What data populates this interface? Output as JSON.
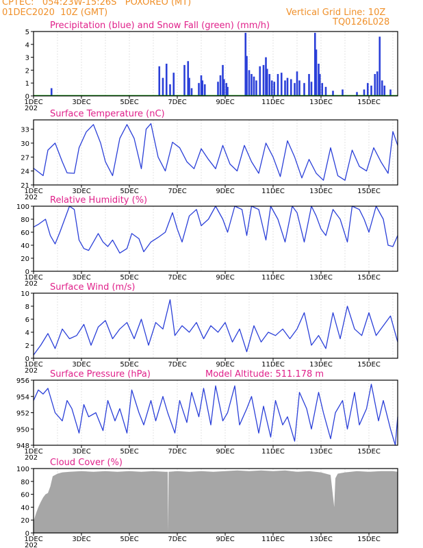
{
  "header": {
    "line1_left": "CPTEC:   054:23W-15:26S   POXOREO (MT)",
    "line2_left": "01DEC2020  10Z (GMT)",
    "line2_right": "Vertical Grid Line: 10Z",
    "line3_right": "TQ0126L028"
  },
  "x_axis": {
    "labels": [
      "1DEC",
      "3DEC",
      "5DEC",
      "7DEC",
      "9DEC",
      "11DEC",
      "13DEC",
      "15DEC"
    ],
    "label_days": [
      1,
      3,
      5,
      7,
      9,
      11,
      13,
      15
    ],
    "stub_label": "202",
    "day_range": [
      1,
      16.2
    ]
  },
  "colors": {
    "series": "#2a3fd8",
    "title": "#e0208a",
    "header": "#f0902a",
    "cloud": "#a6a6a6",
    "snow": "#00a000"
  },
  "chart_data": [
    {
      "type": "bar",
      "title": "Precipitation (blue) and Snow Fall (green) (mm/h)",
      "ylim": [
        0,
        5
      ],
      "yticks": [
        0,
        1,
        2,
        3,
        4,
        5
      ],
      "series": [
        {
          "name": "Precipitation",
          "values": [
            [
              1.75,
              0.6
            ],
            [
              6.25,
              2.3
            ],
            [
              6.4,
              1.4
            ],
            [
              6.55,
              2.5
            ],
            [
              6.7,
              0.9
            ],
            [
              6.85,
              1.8
            ],
            [
              7.3,
              2.4
            ],
            [
              7.45,
              2.7
            ],
            [
              7.5,
              1.4
            ],
            [
              7.6,
              0.6
            ],
            [
              7.9,
              1.0
            ],
            [
              8.0,
              1.6
            ],
            [
              8.05,
              1.2
            ],
            [
              8.15,
              0.9
            ],
            [
              8.7,
              1.1
            ],
            [
              8.8,
              1.6
            ],
            [
              8.9,
              2.4
            ],
            [
              8.95,
              1.3
            ],
            [
              9.05,
              1.0
            ],
            [
              9.1,
              0.7
            ],
            [
              9.85,
              4.9
            ],
            [
              9.9,
              3.1
            ],
            [
              10.0,
              2.0
            ],
            [
              10.1,
              1.7
            ],
            [
              10.2,
              1.5
            ],
            [
              10.3,
              1.2
            ],
            [
              10.45,
              2.3
            ],
            [
              10.6,
              2.4
            ],
            [
              10.7,
              3.0
            ],
            [
              10.75,
              2.1
            ],
            [
              10.85,
              1.7
            ],
            [
              10.95,
              1.2
            ],
            [
              11.05,
              1.1
            ],
            [
              11.2,
              1.7
            ],
            [
              11.35,
              1.8
            ],
            [
              11.5,
              1.2
            ],
            [
              11.6,
              1.4
            ],
            [
              11.75,
              1.3
            ],
            [
              11.9,
              1.0
            ],
            [
              12.0,
              1.9
            ],
            [
              12.1,
              1.2
            ],
            [
              12.3,
              1.0
            ],
            [
              12.5,
              1.7
            ],
            [
              12.6,
              1.1
            ],
            [
              12.75,
              4.9
            ],
            [
              12.8,
              3.6
            ],
            [
              12.9,
              2.5
            ],
            [
              12.95,
              1.7
            ],
            [
              13.05,
              1.0
            ],
            [
              13.2,
              0.7
            ],
            [
              13.5,
              0.4
            ],
            [
              13.9,
              0.5
            ],
            [
              14.5,
              0.3
            ],
            [
              14.8,
              0.5
            ],
            [
              14.95,
              1.0
            ],
            [
              15.1,
              0.8
            ],
            [
              15.25,
              1.7
            ],
            [
              15.35,
              1.9
            ],
            [
              15.45,
              4.6
            ],
            [
              15.55,
              1.2
            ],
            [
              15.65,
              0.8
            ],
            [
              15.9,
              0.5
            ]
          ]
        },
        {
          "name": "Snow Fall",
          "values": [
            [
              1,
              0
            ],
            [
              16.2,
              0
            ]
          ]
        }
      ]
    },
    {
      "type": "line",
      "title": "Surface Temperature (nC)",
      "ylim": [
        21,
        35
      ],
      "yticks": [
        21,
        24,
        27,
        30,
        33
      ],
      "x": [
        1.0,
        1.2,
        1.4,
        1.6,
        1.9,
        2.2,
        2.4,
        2.7,
        2.9,
        3.2,
        3.5,
        3.8,
        4.0,
        4.3,
        4.6,
        4.9,
        5.2,
        5.5,
        5.7,
        5.9,
        6.2,
        6.5,
        6.8,
        7.1,
        7.4,
        7.7,
        8.0,
        8.3,
        8.6,
        8.9,
        9.2,
        9.5,
        9.8,
        10.1,
        10.4,
        10.7,
        11.0,
        11.3,
        11.6,
        11.9,
        12.2,
        12.5,
        12.8,
        13.1,
        13.4,
        13.7,
        14.0,
        14.3,
        14.6,
        14.9,
        15.2,
        15.5,
        15.8,
        16.0,
        16.2
      ],
      "values": [
        24.6,
        23.8,
        23.0,
        28.5,
        30.0,
        26.0,
        23.6,
        23.5,
        29.0,
        32.4,
        34.0,
        30.0,
        26.0,
        23.0,
        31.0,
        34.0,
        31.0,
        24.5,
        33.0,
        34.2,
        27.0,
        24.0,
        30.2,
        29.0,
        26.0,
        24.5,
        28.8,
        26.5,
        24.5,
        29.5,
        25.5,
        24.0,
        29.5,
        26.0,
        23.5,
        30.0,
        27.0,
        22.8,
        30.5,
        27.0,
        22.5,
        26.5,
        23.5,
        22.0,
        29.0,
        23.0,
        22.0,
        28.5,
        25.0,
        24.0,
        29.0,
        26.0,
        23.5,
        32.5,
        29.5
      ]
    },
    {
      "type": "line",
      "title": "Relative Humidity (%)",
      "ylim": [
        0,
        100
      ],
      "yticks": [
        0,
        20,
        40,
        60,
        80,
        100
      ],
      "x": [
        1.0,
        1.2,
        1.5,
        1.7,
        1.9,
        2.1,
        2.5,
        2.7,
        2.9,
        3.1,
        3.3,
        3.5,
        3.7,
        3.9,
        4.1,
        4.3,
        4.6,
        4.9,
        5.1,
        5.4,
        5.6,
        5.9,
        6.2,
        6.5,
        6.8,
        7.0,
        7.2,
        7.5,
        7.8,
        8.0,
        8.3,
        8.6,
        8.9,
        9.1,
        9.4,
        9.7,
        9.9,
        10.1,
        10.4,
        10.7,
        10.9,
        11.2,
        11.5,
        11.8,
        12.0,
        12.3,
        12.6,
        12.8,
        13.0,
        13.2,
        13.5,
        13.8,
        14.1,
        14.3,
        14.6,
        14.8,
        15.0,
        15.3,
        15.6,
        15.8,
        16.0,
        16.2
      ],
      "values": [
        68,
        72,
        80,
        55,
        42,
        60,
        100,
        95,
        48,
        35,
        32,
        45,
        58,
        45,
        38,
        48,
        28,
        35,
        58,
        50,
        30,
        45,
        52,
        60,
        90,
        65,
        45,
        85,
        95,
        70,
        80,
        100,
        80,
        60,
        100,
        95,
        55,
        100,
        95,
        48,
        100,
        80,
        45,
        100,
        90,
        45,
        100,
        85,
        65,
        55,
        95,
        80,
        45,
        100,
        95,
        80,
        60,
        100,
        80,
        40,
        38,
        55
      ]
    },
    {
      "type": "line",
      "title": "Surface Wind (m/s)",
      "ylim": [
        0,
        10
      ],
      "yticks": [
        0,
        2,
        4,
        6,
        8,
        10
      ],
      "x": [
        1.0,
        1.3,
        1.6,
        1.9,
        2.2,
        2.5,
        2.8,
        3.1,
        3.4,
        3.7,
        4.0,
        4.3,
        4.6,
        4.9,
        5.2,
        5.5,
        5.8,
        6.1,
        6.4,
        6.7,
        6.9,
        7.2,
        7.5,
        7.8,
        8.1,
        8.4,
        8.7,
        9.0,
        9.3,
        9.6,
        9.9,
        10.2,
        10.5,
        10.8,
        11.1,
        11.4,
        11.7,
        12.0,
        12.3,
        12.6,
        12.9,
        13.2,
        13.5,
        13.8,
        14.1,
        14.4,
        14.7,
        15.0,
        15.3,
        15.6,
        15.9,
        16.2
      ],
      "values": [
        0.5,
        2.0,
        3.8,
        1.5,
        4.5,
        3.0,
        3.5,
        5.2,
        2.0,
        4.8,
        5.8,
        3.0,
        4.5,
        5.5,
        3.0,
        6.0,
        2.0,
        5.5,
        4.5,
        9.0,
        3.5,
        5.0,
        4.0,
        5.5,
        3.0,
        5.0,
        4.0,
        5.5,
        2.5,
        4.5,
        1.0,
        5.0,
        2.5,
        4.0,
        3.5,
        4.5,
        3.0,
        4.5,
        7.0,
        2.0,
        3.5,
        1.5,
        7.0,
        3.0,
        8.0,
        4.5,
        3.5,
        7.0,
        3.5,
        5.0,
        6.5,
        2.5
      ]
    },
    {
      "type": "line",
      "title": "Surface Pressure (hPa)",
      "annotation": "Model Altitude: 511.178  m",
      "ylim": [
        948,
        956
      ],
      "yticks": [
        948,
        950,
        952,
        954,
        956
      ],
      "x": [
        1.0,
        1.2,
        1.4,
        1.6,
        1.9,
        2.2,
        2.4,
        2.6,
        2.9,
        3.1,
        3.3,
        3.6,
        3.9,
        4.1,
        4.4,
        4.6,
        4.9,
        5.1,
        5.4,
        5.6,
        5.9,
        6.1,
        6.4,
        6.6,
        6.9,
        7.1,
        7.4,
        7.6,
        7.9,
        8.1,
        8.4,
        8.6,
        8.9,
        9.1,
        9.4,
        9.6,
        9.9,
        10.1,
        10.4,
        10.6,
        10.9,
        11.1,
        11.4,
        11.6,
        11.9,
        12.1,
        12.4,
        12.6,
        12.9,
        13.1,
        13.4,
        13.6,
        13.9,
        14.1,
        14.4,
        14.6,
        14.9,
        15.1,
        15.4,
        15.6,
        15.9,
        16.1,
        16.2
      ],
      "values": [
        953.5,
        954.8,
        954.3,
        955.0,
        952.0,
        951.0,
        953.5,
        952.5,
        949.5,
        953.0,
        951.5,
        952.0,
        949.8,
        953.5,
        951.0,
        952.5,
        949.5,
        954.8,
        952.0,
        950.5,
        953.5,
        951.0,
        954.0,
        952.0,
        949.5,
        953.5,
        950.8,
        954.5,
        951.5,
        955.0,
        950.5,
        955.3,
        951.0,
        952.0,
        955.3,
        950.5,
        952.5,
        954.0,
        949.5,
        952.8,
        949.0,
        953.5,
        950.5,
        951.5,
        948.5,
        954.5,
        952.5,
        950.0,
        954.5,
        952.0,
        948.8,
        952.0,
        953.5,
        950.0,
        954.5,
        950.5,
        952.5,
        955.5,
        951.0,
        953.5,
        950.0,
        948.0,
        951.5
      ]
    },
    {
      "type": "area",
      "title": "Cloud Cover (%)",
      "ylim": [
        0,
        100
      ],
      "yticks": [
        0,
        20,
        40,
        60,
        80,
        100
      ],
      "x": [
        1.0,
        1.1,
        1.2,
        1.3,
        1.4,
        1.5,
        1.6,
        1.7,
        1.8,
        2.0,
        2.2,
        2.5,
        3.0,
        3.5,
        4.0,
        4.5,
        5.0,
        5.5,
        6.0,
        6.5,
        6.6,
        6.62,
        6.64,
        7.0,
        7.5,
        8.0,
        8.5,
        9.0,
        9.5,
        10.0,
        10.5,
        11.0,
        11.5,
        12.0,
        12.5,
        13.0,
        13.4,
        13.55,
        13.6,
        13.7,
        14.0,
        14.5,
        15.0,
        15.5,
        16.0,
        16.2
      ],
      "values": [
        18,
        30,
        40,
        48,
        55,
        60,
        62,
        72,
        88,
        92,
        94,
        95,
        96,
        95,
        96,
        95,
        96,
        95,
        96,
        95,
        95,
        2,
        95,
        96,
        95,
        96,
        95,
        96,
        97,
        96,
        97,
        96,
        97,
        95,
        96,
        94,
        90,
        40,
        85,
        92,
        94,
        96,
        95,
        96,
        96,
        95
      ]
    }
  ]
}
